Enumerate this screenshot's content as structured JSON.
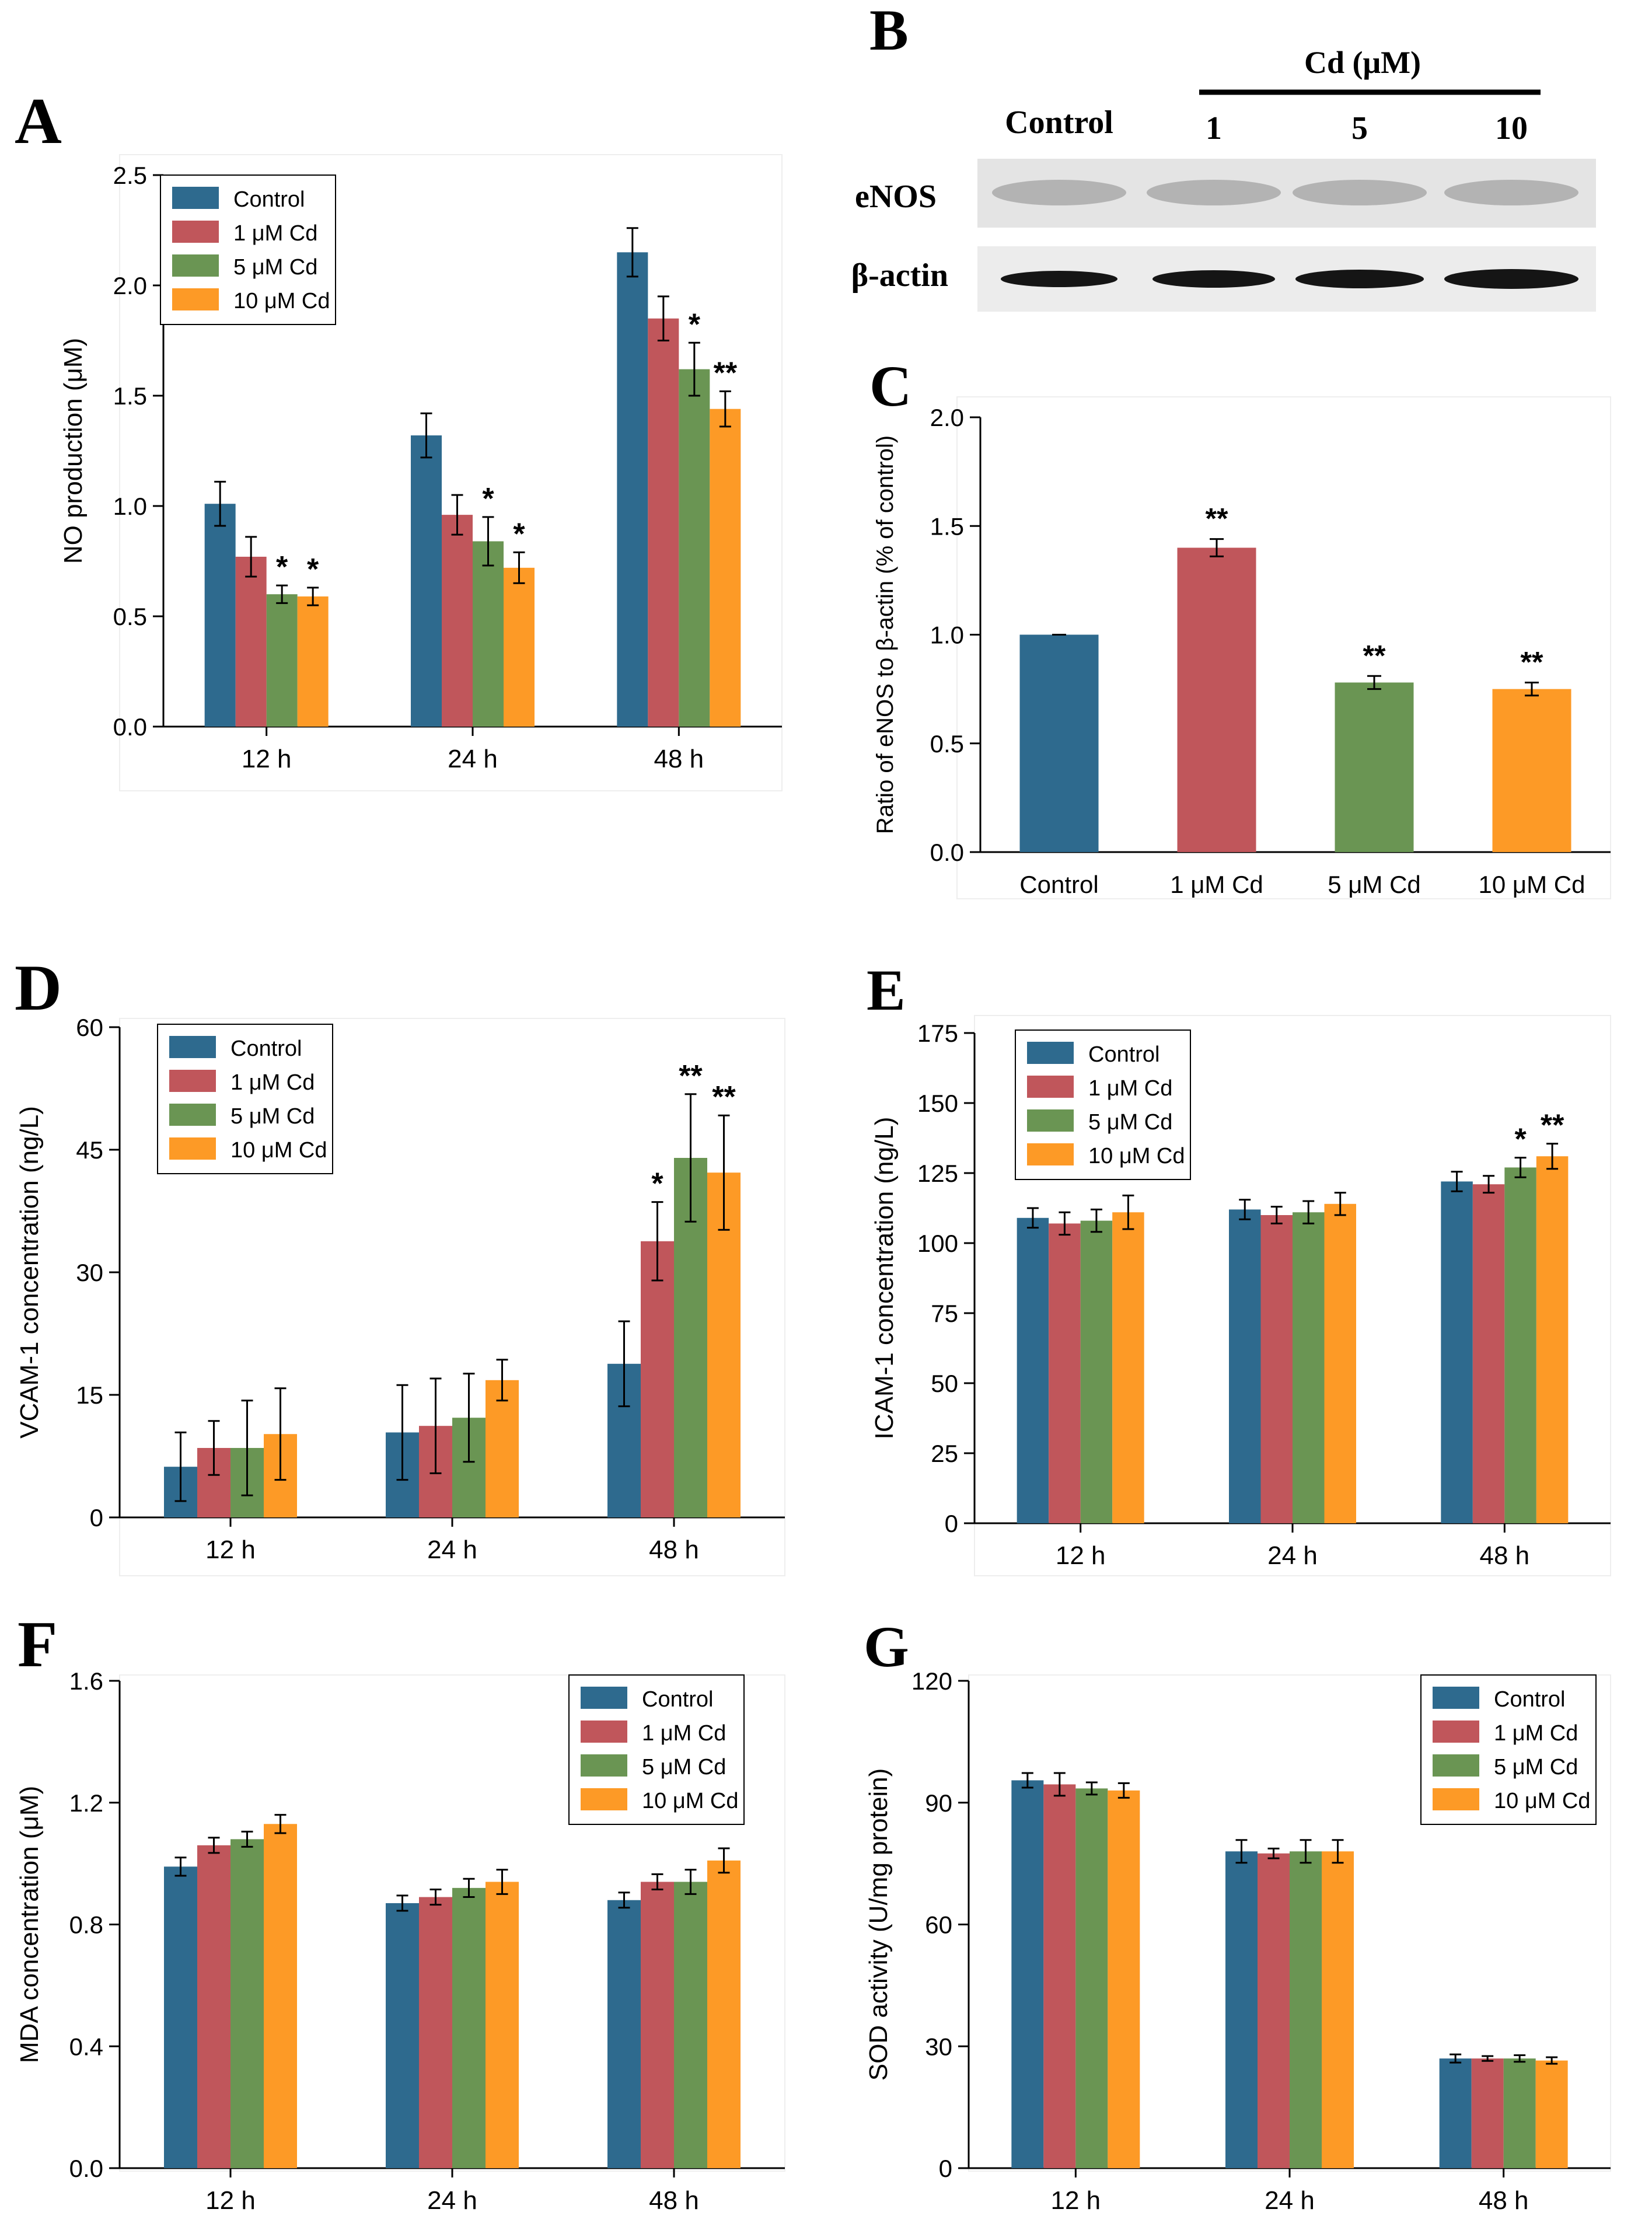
{
  "colors": {
    "control": "#2e6a8e",
    "cd1": "#c0565b",
    "cd5": "#6a9553",
    "cd10": "#fd9a26",
    "axis": "#000000",
    "blot_bg": "#ececec"
  },
  "panel_labels": {
    "A": "A",
    "B": "B",
    "C": "C",
    "D": "D",
    "E": "E",
    "F": "F",
    "G": "G"
  },
  "blot": {
    "header": "Cd (μM)",
    "lanes": [
      "Control",
      "1",
      "5",
      "10"
    ],
    "rows": [
      "eNOS",
      "β-actin"
    ]
  },
  "chart_data": [
    {
      "id": "A",
      "type": "bar",
      "title": "",
      "xlabel": "",
      "ylabel": "NO production (μM)",
      "ylim": [
        0,
        2.5
      ],
      "yticks": [
        "0.0",
        "0.5",
        "1.0",
        "1.5",
        "2.0",
        "2.5"
      ],
      "categories": [
        "12 h",
        "24 h",
        "48 h"
      ],
      "legend": "top-left",
      "series": [
        {
          "name": "Control",
          "values": [
            1.01,
            1.32,
            2.15
          ],
          "err": [
            0.1,
            0.1,
            0.11
          ],
          "sig": [
            "",
            "",
            ""
          ]
        },
        {
          "name": "1 μM Cd",
          "values": [
            0.77,
            0.96,
            1.85
          ],
          "err": [
            0.09,
            0.09,
            0.1
          ],
          "sig": [
            "",
            "",
            ""
          ]
        },
        {
          "name": "5 μM Cd",
          "values": [
            0.6,
            0.84,
            1.62
          ],
          "err": [
            0.04,
            0.11,
            0.12
          ],
          "sig": [
            "*",
            "*",
            "*"
          ]
        },
        {
          "name": "10 μM Cd",
          "values": [
            0.59,
            0.72,
            1.44
          ],
          "err": [
            0.04,
            0.07,
            0.08
          ],
          "sig": [
            "*",
            "*",
            "**"
          ]
        }
      ]
    },
    {
      "id": "C",
      "type": "bar",
      "title": "",
      "xlabel": "",
      "ylabel": "Ratio of eNOS to β-actin (% of control)",
      "ylim": [
        0,
        2.0
      ],
      "yticks": [
        "0.0",
        "0.5",
        "1.0",
        "1.5",
        "2.0"
      ],
      "categories": [
        "Control",
        "1 μM Cd",
        "5 μM Cd",
        "10 μM Cd"
      ],
      "values": [
        1.0,
        1.4,
        0.78,
        0.75
      ],
      "err": [
        0.0,
        0.04,
        0.03,
        0.03
      ],
      "sig": [
        "",
        "**",
        "**",
        "**"
      ]
    },
    {
      "id": "D",
      "type": "bar",
      "title": "",
      "xlabel": "",
      "ylabel": "VCAM-1 concentration (ng/L)",
      "ylim": [
        0,
        60
      ],
      "yticks": [
        "0",
        "15",
        "30",
        "45",
        "60"
      ],
      "categories": [
        "12 h",
        "24 h",
        "48 h"
      ],
      "legend": "top-left",
      "series": [
        {
          "name": "Control",
          "values": [
            6.2,
            10.4,
            18.8
          ],
          "err": [
            4.2,
            5.8,
            5.2
          ],
          "sig": [
            "",
            "",
            ""
          ]
        },
        {
          "name": "1 μM Cd",
          "values": [
            8.5,
            11.2,
            33.8
          ],
          "err": [
            3.3,
            5.8,
            4.8
          ],
          "sig": [
            "",
            "",
            "*"
          ]
        },
        {
          "name": "5 μM Cd",
          "values": [
            8.5,
            12.2,
            44.0
          ],
          "err": [
            5.8,
            5.4,
            7.8
          ],
          "sig": [
            "",
            "",
            "**"
          ]
        },
        {
          "name": "10 μM Cd",
          "values": [
            10.2,
            16.8,
            42.2
          ],
          "err": [
            5.6,
            2.5,
            7.0
          ],
          "sig": [
            "",
            "",
            "**"
          ]
        }
      ]
    },
    {
      "id": "E",
      "type": "bar",
      "title": "",
      "xlabel": "",
      "ylabel": "ICAM-1 concentration (ng/L)",
      "ylim": [
        0,
        175
      ],
      "yticks": [
        "0",
        "25",
        "50",
        "75",
        "100",
        "125",
        "150",
        "175"
      ],
      "categories": [
        "12 h",
        "24 h",
        "48 h"
      ],
      "legend": "top-left",
      "series": [
        {
          "name": "Control",
          "values": [
            109,
            112,
            122
          ],
          "err": [
            3.5,
            3.5,
            3.5
          ],
          "sig": [
            "",
            "",
            ""
          ]
        },
        {
          "name": "1 μM Cd",
          "values": [
            107,
            110,
            121
          ],
          "err": [
            4.0,
            3.0,
            3.0
          ],
          "sig": [
            "",
            "",
            ""
          ]
        },
        {
          "name": "5 μM Cd",
          "values": [
            108,
            111,
            127
          ],
          "err": [
            4.0,
            4.0,
            3.5
          ],
          "sig": [
            "",
            "",
            "*"
          ]
        },
        {
          "name": "10 μM Cd",
          "values": [
            111,
            114,
            131
          ],
          "err": [
            6.0,
            4.0,
            4.5
          ],
          "sig": [
            "",
            "",
            "**"
          ]
        }
      ]
    },
    {
      "id": "F",
      "type": "bar",
      "title": "",
      "xlabel": "",
      "ylabel": "MDA concentration (μM)",
      "ylim": [
        0,
        1.6
      ],
      "yticks": [
        "0.0",
        "0.4",
        "0.8",
        "1.2",
        "1.6"
      ],
      "categories": [
        "12 h",
        "24 h",
        "48 h"
      ],
      "legend": "top-right",
      "series": [
        {
          "name": "Control",
          "values": [
            0.99,
            0.87,
            0.88
          ],
          "err": [
            0.03,
            0.025,
            0.025
          ],
          "sig": [
            "",
            "",
            ""
          ]
        },
        {
          "name": "1 μM Cd",
          "values": [
            1.06,
            0.89,
            0.94
          ],
          "err": [
            0.025,
            0.025,
            0.025
          ],
          "sig": [
            "",
            "",
            ""
          ]
        },
        {
          "name": "5 μM Cd",
          "values": [
            1.08,
            0.92,
            0.94
          ],
          "err": [
            0.025,
            0.03,
            0.04
          ],
          "sig": [
            "",
            "",
            ""
          ]
        },
        {
          "name": "10 μM Cd",
          "values": [
            1.13,
            0.94,
            1.01
          ],
          "err": [
            0.03,
            0.04,
            0.04
          ],
          "sig": [
            "",
            "",
            ""
          ]
        }
      ]
    },
    {
      "id": "G",
      "type": "bar",
      "title": "",
      "xlabel": "",
      "ylabel": "SOD activity (U/mg protein)",
      "ylim": [
        0,
        120
      ],
      "yticks": [
        "0",
        "30",
        "60",
        "90",
        "120"
      ],
      "categories": [
        "12 h",
        "24 h",
        "48 h"
      ],
      "legend": "top-right",
      "series": [
        {
          "name": "Control",
          "values": [
            95.5,
            78,
            27
          ],
          "err": [
            1.8,
            2.8,
            1.0
          ],
          "sig": [
            "",
            "",
            ""
          ]
        },
        {
          "name": "1 μM Cd",
          "values": [
            94.5,
            77.5,
            27
          ],
          "err": [
            2.8,
            1.2,
            0.6
          ],
          "sig": [
            "",
            "",
            ""
          ]
        },
        {
          "name": "5 μM Cd",
          "values": [
            93.5,
            78,
            27
          ],
          "err": [
            1.5,
            2.8,
            0.8
          ],
          "sig": [
            "",
            "",
            ""
          ]
        },
        {
          "name": "10 μM Cd",
          "values": [
            93,
            78,
            26.5
          ],
          "err": [
            1.8,
            2.8,
            0.8
          ],
          "sig": [
            "",
            "",
            ""
          ]
        }
      ]
    }
  ]
}
